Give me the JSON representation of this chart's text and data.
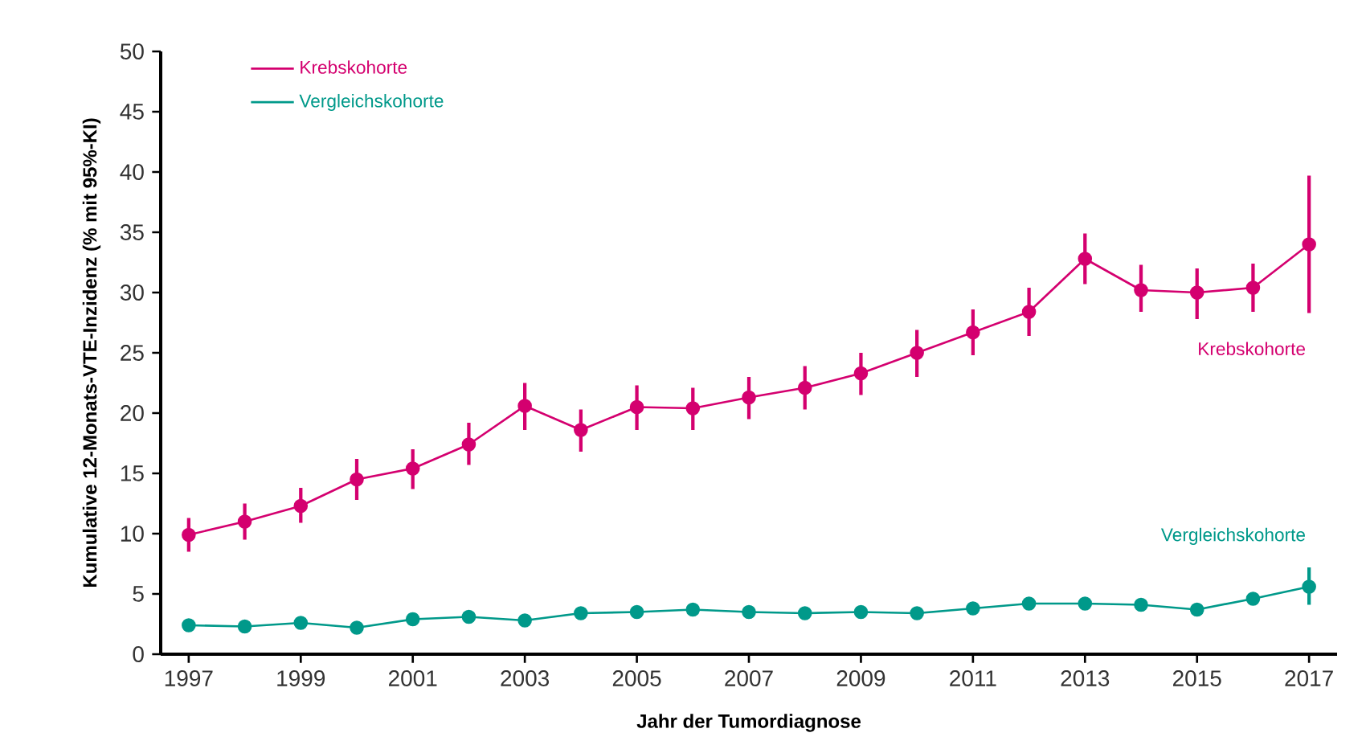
{
  "chart_data": {
    "type": "line",
    "xlabel": "Jahr der Tumordiagnose",
    "ylabel": "Kumulative 12-Monats-VTE-Inzidenz (% mit 95%-KI)",
    "x": [
      1997,
      1998,
      1999,
      2000,
      2001,
      2002,
      2003,
      2004,
      2005,
      2006,
      2007,
      2008,
      2009,
      2010,
      2011,
      2012,
      2013,
      2014,
      2015,
      2016,
      2017
    ],
    "series": [
      {
        "name": "Krebskohorte",
        "color": "#d4006f",
        "values": [
          9.9,
          11.0,
          12.3,
          14.5,
          15.4,
          17.4,
          20.6,
          18.6,
          20.5,
          20.4,
          21.3,
          22.1,
          23.3,
          25.0,
          26.7,
          28.4,
          32.8,
          30.2,
          30.0,
          30.4,
          34.0
        ],
        "errors": [
          [
            8.5,
            11.3
          ],
          [
            9.5,
            12.5
          ],
          [
            10.9,
            13.8
          ],
          [
            12.8,
            16.2
          ],
          [
            13.7,
            17.0
          ],
          [
            15.7,
            19.2
          ],
          [
            18.6,
            22.5
          ],
          [
            16.8,
            20.3
          ],
          [
            18.6,
            22.3
          ],
          [
            18.6,
            22.1
          ],
          [
            19.5,
            23.0
          ],
          [
            20.3,
            23.9
          ],
          [
            21.5,
            25.0
          ],
          [
            23.0,
            26.9
          ],
          [
            24.8,
            28.6
          ],
          [
            26.4,
            30.4
          ],
          [
            30.7,
            34.9
          ],
          [
            28.4,
            32.3
          ],
          [
            27.8,
            32.0
          ],
          [
            28.4,
            32.4
          ],
          [
            28.3,
            39.7
          ]
        ]
      },
      {
        "name": "Vergleichskohorte",
        "color": "#00998a",
        "values": [
          2.4,
          2.3,
          2.6,
          2.2,
          2.9,
          3.1,
          2.8,
          3.4,
          3.5,
          3.7,
          3.5,
          3.4,
          3.5,
          3.4,
          3.8,
          4.2,
          4.2,
          4.1,
          3.7,
          4.6,
          5.6
        ],
        "errors": [
          null,
          null,
          null,
          null,
          null,
          null,
          null,
          null,
          null,
          null,
          null,
          null,
          null,
          null,
          null,
          null,
          null,
          null,
          null,
          null,
          [
            4.1,
            7.2
          ]
        ]
      }
    ],
    "annotations": [
      "Krebskohorte",
      "Vergleichskohorte"
    ],
    "xlim": [
      1996.5,
      2017.5
    ],
    "ylim": [
      0,
      50
    ],
    "xticks": [
      1997,
      1999,
      2001,
      2003,
      2005,
      2007,
      2009,
      2011,
      2013,
      2015,
      2017
    ],
    "yticks": [
      0,
      5,
      10,
      15,
      20,
      25,
      30,
      35,
      40,
      45,
      50
    ],
    "grid": false,
    "legend": "top left",
    "marker": "circle",
    "line_style": "solid"
  }
}
